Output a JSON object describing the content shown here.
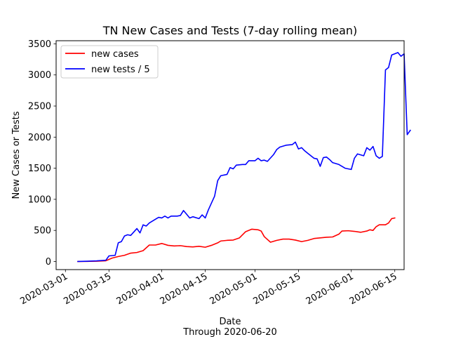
{
  "chart_data": {
    "type": "line",
    "title": "TN New Cases and Tests (7-day rolling mean)",
    "xlabel": "Date",
    "xlabel_subtitle": "Through 2020-06-20",
    "ylabel": "New Cases or Tests",
    "x_range": [
      "2020-02-27",
      "2020-06-18"
    ],
    "ylim": [
      -130,
      3550
    ],
    "yticks": [
      0,
      500,
      1000,
      1500,
      2000,
      2500,
      3000,
      3500
    ],
    "xticks": [
      "2020-03-01",
      "2020-03-15",
      "2020-04-01",
      "2020-04-15",
      "2020-05-01",
      "2020-05-15",
      "2020-06-01",
      "2020-06-15"
    ],
    "grid": false,
    "legend_position": "top-left",
    "series": [
      {
        "name": "new cases",
        "color": "#ff0000",
        "points": [
          [
            "2020-03-05",
            0
          ],
          [
            "2020-03-08",
            2
          ],
          [
            "2020-03-11",
            5
          ],
          [
            "2020-03-14",
            12
          ],
          [
            "2020-03-16",
            55
          ],
          [
            "2020-03-18",
            80
          ],
          [
            "2020-03-20",
            100
          ],
          [
            "2020-03-22",
            135
          ],
          [
            "2020-03-24",
            145
          ],
          [
            "2020-03-26",
            175
          ],
          [
            "2020-03-28",
            265
          ],
          [
            "2020-03-30",
            265
          ],
          [
            "2020-04-01",
            290
          ],
          [
            "2020-04-03",
            260
          ],
          [
            "2020-04-05",
            250
          ],
          [
            "2020-04-07",
            255
          ],
          [
            "2020-04-09",
            240
          ],
          [
            "2020-04-11",
            235
          ],
          [
            "2020-04-13",
            245
          ],
          [
            "2020-04-15",
            230
          ],
          [
            "2020-04-17",
            260
          ],
          [
            "2020-04-19",
            300
          ],
          [
            "2020-04-20",
            330
          ],
          [
            "2020-04-22",
            340
          ],
          [
            "2020-04-24",
            345
          ],
          [
            "2020-04-26",
            380
          ],
          [
            "2020-04-28",
            480
          ],
          [
            "2020-04-30",
            520
          ],
          [
            "2020-05-02",
            510
          ],
          [
            "2020-05-03",
            490
          ],
          [
            "2020-05-04",
            400
          ],
          [
            "2020-05-06",
            310
          ],
          [
            "2020-05-08",
            340
          ],
          [
            "2020-05-10",
            360
          ],
          [
            "2020-05-12",
            360
          ],
          [
            "2020-05-14",
            345
          ],
          [
            "2020-05-16",
            320
          ],
          [
            "2020-05-18",
            340
          ],
          [
            "2020-05-20",
            370
          ],
          [
            "2020-05-22",
            380
          ],
          [
            "2020-05-24",
            390
          ],
          [
            "2020-05-26",
            395
          ],
          [
            "2020-05-28",
            440
          ],
          [
            "2020-05-29",
            490
          ],
          [
            "2020-05-31",
            495
          ],
          [
            "2020-06-02",
            485
          ],
          [
            "2020-06-04",
            470
          ],
          [
            "2020-06-06",
            490
          ],
          [
            "2020-06-07",
            510
          ],
          [
            "2020-06-08",
            500
          ],
          [
            "2020-06-09",
            560
          ],
          [
            "2020-06-10",
            590
          ],
          [
            "2020-06-12",
            590
          ],
          [
            "2020-06-13",
            620
          ],
          [
            "2020-06-14",
            690
          ],
          [
            "2020-06-15",
            700
          ]
        ]
      },
      {
        "name": "new tests / 5",
        "color": "#0000ff",
        "points": [
          [
            "2020-03-05",
            0
          ],
          [
            "2020-03-08",
            5
          ],
          [
            "2020-03-11",
            10
          ],
          [
            "2020-03-14",
            20
          ],
          [
            "2020-03-15",
            90
          ],
          [
            "2020-03-17",
            100
          ],
          [
            "2020-03-18",
            300
          ],
          [
            "2020-03-19",
            320
          ],
          [
            "2020-03-20",
            410
          ],
          [
            "2020-03-21",
            430
          ],
          [
            "2020-03-22",
            420
          ],
          [
            "2020-03-24",
            530
          ],
          [
            "2020-03-25",
            460
          ],
          [
            "2020-03-26",
            590
          ],
          [
            "2020-03-27",
            570
          ],
          [
            "2020-03-28",
            620
          ],
          [
            "2020-03-30",
            680
          ],
          [
            "2020-03-31",
            710
          ],
          [
            "2020-04-01",
            700
          ],
          [
            "2020-04-02",
            730
          ],
          [
            "2020-04-03",
            700
          ],
          [
            "2020-04-04",
            730
          ],
          [
            "2020-04-06",
            730
          ],
          [
            "2020-04-07",
            740
          ],
          [
            "2020-04-08",
            820
          ],
          [
            "2020-04-09",
            760
          ],
          [
            "2020-04-10",
            700
          ],
          [
            "2020-04-11",
            720
          ],
          [
            "2020-04-13",
            690
          ],
          [
            "2020-04-14",
            750
          ],
          [
            "2020-04-15",
            700
          ],
          [
            "2020-04-16",
            830
          ],
          [
            "2020-04-18",
            1050
          ],
          [
            "2020-04-19",
            1300
          ],
          [
            "2020-04-20",
            1380
          ],
          [
            "2020-04-22",
            1400
          ],
          [
            "2020-04-23",
            1510
          ],
          [
            "2020-04-24",
            1490
          ],
          [
            "2020-04-25",
            1550
          ],
          [
            "2020-04-27",
            1560
          ],
          [
            "2020-04-28",
            1560
          ],
          [
            "2020-04-29",
            1620
          ],
          [
            "2020-05-01",
            1620
          ],
          [
            "2020-05-02",
            1660
          ],
          [
            "2020-05-03",
            1620
          ],
          [
            "2020-05-04",
            1630
          ],
          [
            "2020-05-05",
            1610
          ],
          [
            "2020-05-07",
            1720
          ],
          [
            "2020-05-08",
            1800
          ],
          [
            "2020-05-09",
            1840
          ],
          [
            "2020-05-11",
            1870
          ],
          [
            "2020-05-13",
            1880
          ],
          [
            "2020-05-14",
            1920
          ],
          [
            "2020-05-15",
            1810
          ],
          [
            "2020-05-16",
            1830
          ],
          [
            "2020-05-17",
            1780
          ],
          [
            "2020-05-18",
            1740
          ],
          [
            "2020-05-19",
            1700
          ],
          [
            "2020-05-20",
            1660
          ],
          [
            "2020-05-21",
            1650
          ],
          [
            "2020-05-22",
            1530
          ],
          [
            "2020-05-23",
            1670
          ],
          [
            "2020-05-24",
            1680
          ],
          [
            "2020-05-25",
            1640
          ],
          [
            "2020-05-26",
            1590
          ],
          [
            "2020-05-28",
            1560
          ],
          [
            "2020-05-30",
            1500
          ],
          [
            "2020-06-01",
            1480
          ],
          [
            "2020-06-02",
            1660
          ],
          [
            "2020-06-03",
            1730
          ],
          [
            "2020-06-05",
            1700
          ],
          [
            "2020-06-06",
            1830
          ],
          [
            "2020-06-07",
            1790
          ],
          [
            "2020-06-08",
            1850
          ],
          [
            "2020-06-09",
            1700
          ],
          [
            "2020-06-10",
            1660
          ],
          [
            "2020-06-11",
            1690
          ],
          [
            "2020-06-12",
            3080
          ],
          [
            "2020-06-13",
            3120
          ],
          [
            "2020-06-14",
            3320
          ],
          [
            "2020-06-15",
            3340
          ],
          [
            "2020-06-16",
            3360
          ],
          [
            "2020-06-17",
            3300
          ],
          [
            "2020-06-18",
            3340
          ],
          [
            "2020-06-19",
            2040
          ],
          [
            "2020-06-20",
            2110
          ]
        ]
      }
    ]
  }
}
